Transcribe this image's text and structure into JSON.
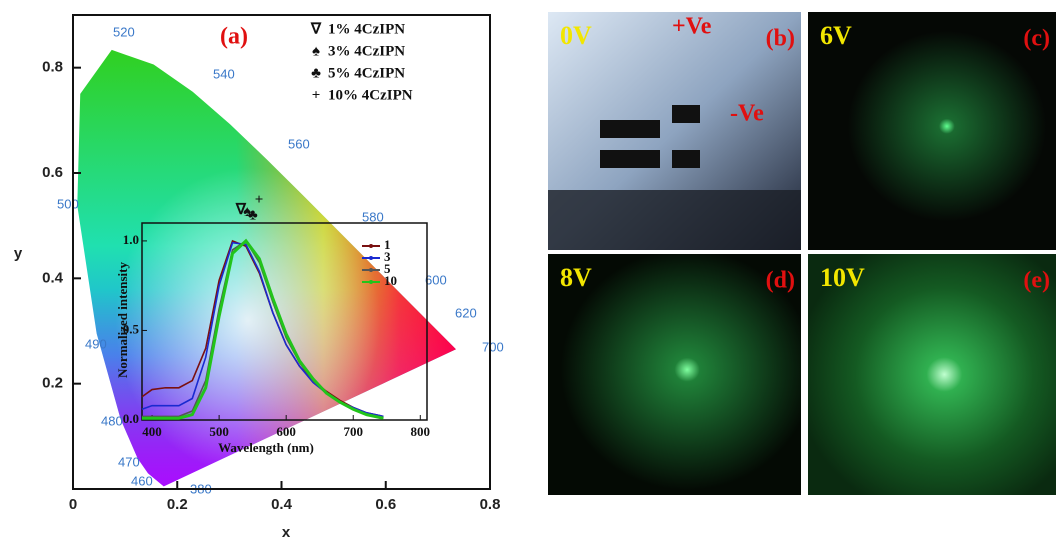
{
  "chart_data": [
    {
      "type": "scatter",
      "panel_label": "(a)",
      "x_label": "x",
      "y_label": "y",
      "xlim": [
        0,
        0.8
      ],
      "ylim": [
        0,
        0.9
      ],
      "xticks": [
        0,
        0.2,
        0.4,
        0.6,
        0.8
      ],
      "yticks": [
        0.2,
        0.4,
        0.6,
        0.8
      ],
      "locus_labels": [
        "520",
        "540",
        "560",
        "580",
        "600",
        "620",
        "700",
        "500",
        "490",
        "480",
        "470",
        "460",
        "380"
      ],
      "series": [
        {
          "name": "1% 4CzIPN",
          "marker": "∇",
          "color": "#111111",
          "x": [
            0.322
          ],
          "values": [
            0.529
          ]
        },
        {
          "name": "3% 4CzIPN",
          "marker": "♠",
          "color": "#111111",
          "x": [
            0.334
          ],
          "values": [
            0.525
          ]
        },
        {
          "name": "5% 4CzIPN",
          "marker": "♣",
          "color": "#111111",
          "x": [
            0.345
          ],
          "values": [
            0.518
          ]
        },
        {
          "name": "10% 4CzIPN",
          "marker": "+",
          "color": "#111111",
          "x": [
            0.357
          ],
          "values": [
            0.548
          ]
        }
      ]
    },
    {
      "type": "line",
      "x_label": "Wavelength (nm)",
      "y_label": "Normalized intensity",
      "xlim": [
        385,
        810
      ],
      "ylim": [
        0,
        1.1
      ],
      "xticks": [
        400,
        500,
        600,
        700,
        800
      ],
      "yticks": [
        {
          "value": 0,
          "label": "0.0"
        },
        {
          "value": 0.5,
          "label": "0.5"
        },
        {
          "value": 1,
          "label": "1.0"
        }
      ],
      "x": [
        385,
        400,
        420,
        440,
        460,
        480,
        500,
        520,
        540,
        560,
        580,
        600,
        620,
        640,
        660,
        680,
        700,
        720,
        745
      ],
      "series": [
        {
          "name": "1",
          "color": "#7a1010",
          "values": [
            0.13,
            0.17,
            0.18,
            0.18,
            0.22,
            0.4,
            0.78,
            1.0,
            0.97,
            0.82,
            0.6,
            0.42,
            0.3,
            0.22,
            0.16,
            0.11,
            0.07,
            0.04,
            0.02
          ]
        },
        {
          "name": "3",
          "color": "#1a2ad0",
          "values": [
            0.06,
            0.08,
            0.08,
            0.08,
            0.12,
            0.35,
            0.75,
            0.99,
            0.98,
            0.83,
            0.6,
            0.42,
            0.3,
            0.21,
            0.15,
            0.1,
            0.07,
            0.04,
            0.02
          ]
        },
        {
          "name": "5",
          "color": "#555555",
          "values": [
            0.02,
            0.02,
            0.02,
            0.02,
            0.05,
            0.22,
            0.62,
            0.95,
            1.0,
            0.88,
            0.66,
            0.46,
            0.32,
            0.22,
            0.15,
            0.1,
            0.06,
            0.03,
            0.01
          ]
        },
        {
          "name": "10",
          "color": "#22c41a",
          "values": [
            0.01,
            0.01,
            0.01,
            0.01,
            0.03,
            0.18,
            0.58,
            0.93,
            1.0,
            0.9,
            0.68,
            0.48,
            0.33,
            0.23,
            0.15,
            0.1,
            0.06,
            0.03,
            0.01
          ]
        }
      ]
    }
  ],
  "photos": [
    {
      "voltage": "0V",
      "label": "(b)",
      "annotations": [
        "+Ve",
        "-Ve"
      ]
    },
    {
      "voltage": "6V",
      "label": "(c)"
    },
    {
      "voltage": "8V",
      "label": "(d)"
    },
    {
      "voltage": "10V",
      "label": "(e)"
    }
  ]
}
